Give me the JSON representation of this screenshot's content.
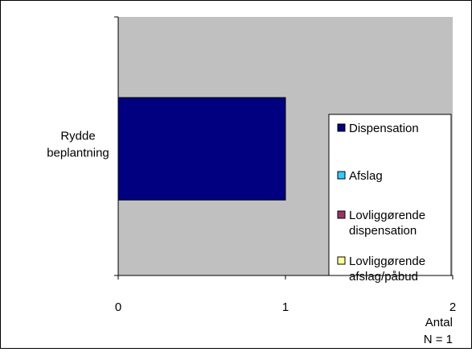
{
  "chart_data": {
    "type": "bar",
    "orientation": "horizontal",
    "categories": [
      "Rydde beplantning"
    ],
    "category_label_lines": [
      [
        "Rydde",
        "beplantning"
      ]
    ],
    "series": [
      {
        "name": "Dispensation",
        "values": [
          1
        ],
        "color": "#000080"
      },
      {
        "name": "Afslag",
        "values": [
          0
        ],
        "color": "#33CCFF"
      },
      {
        "name": "Lovliggørende dispensation",
        "values": [
          0
        ],
        "color": "#993366"
      },
      {
        "name": "Lovliggørende afslag/påbud",
        "values": [
          0
        ],
        "color": "#FFFF99"
      }
    ],
    "legend_label_lines": [
      [
        "Dispensation"
      ],
      [
        "Afslag"
      ],
      [
        "Lovliggørende",
        "dispensation"
      ],
      [
        "Lovliggørende",
        "afslag/påbud"
      ]
    ],
    "xticks": [
      "0",
      "1",
      "2"
    ],
    "xlim": [
      0,
      2
    ],
    "xlabel": "Antal",
    "note": "N = 1",
    "plot_background": "#C0C0C0",
    "legend_position": "right"
  }
}
